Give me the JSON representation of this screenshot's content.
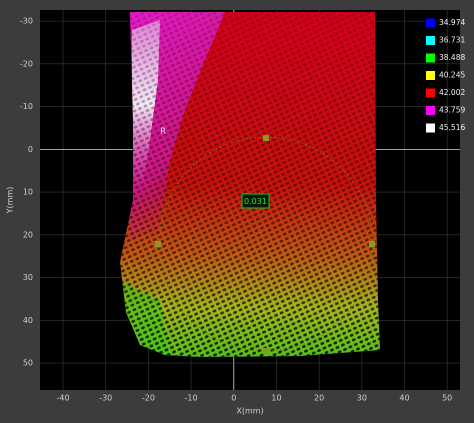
{
  "chart_data": {
    "type": "pointcloud",
    "x_label": "X(mm)",
    "y_label": "Y(mm)",
    "xlim": [
      -45.4,
      53
    ],
    "ylim": [
      -32.6,
      56.3
    ],
    "y_inverted": true,
    "xticks": [
      -40,
      -30,
      -20,
      -10,
      0,
      10,
      20,
      30,
      40,
      50
    ],
    "yticks": [
      -30,
      -20,
      -10,
      0,
      10,
      20,
      30,
      40,
      50
    ],
    "grid": true,
    "legend_position": "upper right",
    "legend": [
      {
        "color": "#0000ff",
        "value": 34.974
      },
      {
        "color": "#00ffff",
        "value": 36.731
      },
      {
        "color": "#00ff00",
        "value": 38.488
      },
      {
        "color": "#ffff00",
        "value": 40.245
      },
      {
        "color": "#ff0000",
        "value": 42.002
      },
      {
        "color": "#ff00ff",
        "value": 43.759
      },
      {
        "color": "#ffffff",
        "value": 45.516
      }
    ],
    "annotations": [
      "0.031",
      "R"
    ]
  }
}
